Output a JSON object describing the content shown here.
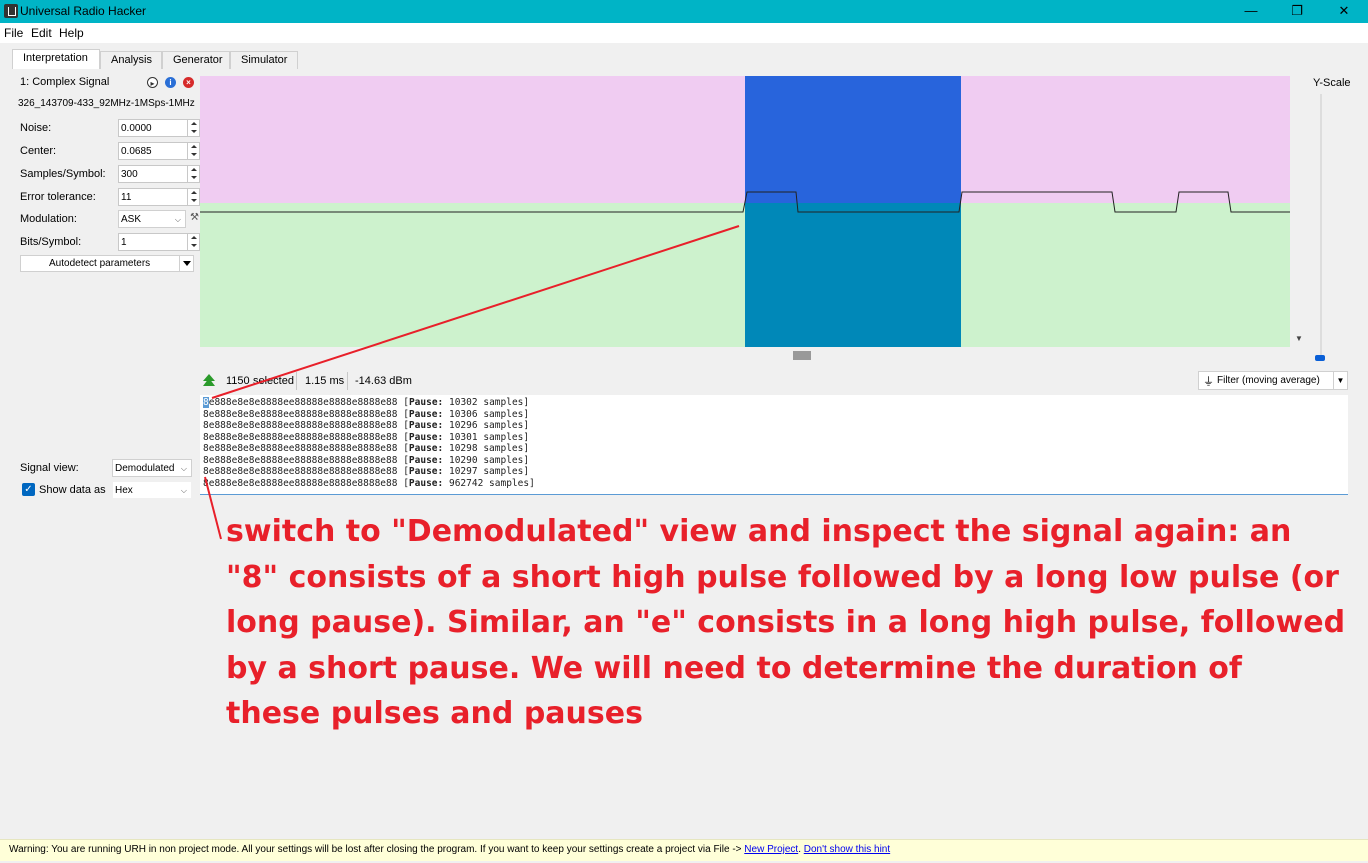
{
  "window": {
    "title": "Universal Radio Hacker",
    "minimize": "—",
    "maximize": "❐",
    "close": "✕"
  },
  "menu": [
    "File",
    "Edit",
    "Help"
  ],
  "tabs": [
    "Interpretation",
    "Analysis",
    "Generator",
    "Simulator"
  ],
  "signal": {
    "name": "1:  Complex Signal",
    "filename": "326_143709-433_92MHz-1MSps-1MHz",
    "params": [
      {
        "label": "Noise:",
        "value": "0.0000"
      },
      {
        "label": "Center:",
        "value": "0.0685"
      },
      {
        "label": "Samples/Symbol:",
        "value": "300"
      },
      {
        "label": "Error tolerance:",
        "value": "11"
      }
    ],
    "modulation": {
      "label": "Modulation:",
      "value": "ASK"
    },
    "bits_per_symbol": {
      "label": "Bits/Symbol:",
      "value": "1"
    },
    "autodetect": "Autodetect parameters",
    "signal_view": {
      "label": "Signal view:",
      "value": "Demodulated"
    },
    "show_data_as": {
      "label": "Show data as",
      "value": "Hex",
      "checked": true
    }
  },
  "yscale_label": "Y-Scale",
  "status": {
    "selected": "1150",
    "selected_suffix": "selected",
    "duration": "1.15 ms",
    "power": "-14.63 dBm",
    "filter": "Filter (moving average)"
  },
  "hex_lines": [
    {
      "data": "8e888e8e8e8888ee88888e8888e8888e88",
      "pause": "10302"
    },
    {
      "data": "8e888e8e8e8888ee88888e8888e8888e88",
      "pause": "10306"
    },
    {
      "data": "8e888e8e8e8888ee88888e8888e8888e88",
      "pause": "10296"
    },
    {
      "data": "8e888e8e8e8888ee88888e8888e8888e88",
      "pause": "10301"
    },
    {
      "data": "8e888e8e8e8888ee88888e8888e8888e88",
      "pause": "10298"
    },
    {
      "data": "8e888e8e8e8888ee88888e8888e8888e88",
      "pause": "10290"
    },
    {
      "data": "8e888e8e8e8888ee88888e8888e8888e88",
      "pause": "10297"
    },
    {
      "data": "8e888e8e8e8888ee88888e8888e8888e88",
      "pause": "962742"
    }
  ],
  "pause_label": "Pause:",
  "samples_label": "samples",
  "annotation": "switch to \"Demodulated\" view and inspect the signal again: an \"8\" consists of a short high pulse followed by a long low pulse (or long pause). Similar, an \"e\" consists in a long high pulse, followed by a short pause. We will need to determine the duration of these pulses and pauses",
  "warning": {
    "text": "Warning: You are running URH in non project mode. All your settings will be lost after closing the program. If you want to keep your settings create a project via File -> ",
    "link1": "New Project",
    "separator": ". ",
    "link2": "Don't show this hint"
  },
  "colors": {
    "titlebar": "#00b4c6",
    "graph_top": "#f0ccf2",
    "graph_bottom": "#cdf2cd",
    "selection_top": "#2864dc",
    "selection_bottom": "#0088b8",
    "annotation": "#e8202a"
  }
}
